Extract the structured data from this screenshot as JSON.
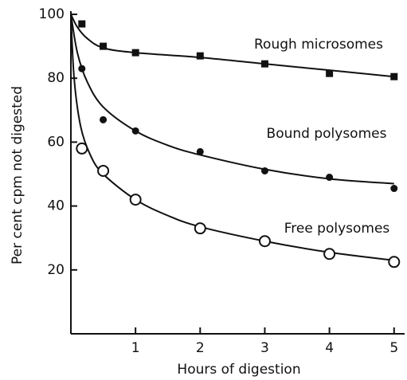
{
  "chart_data": {
    "type": "scatter",
    "x_label": "Hours of digestion",
    "y_label": "Per cent cpm not digested",
    "xlim": [
      0,
      5.2
    ],
    "ylim": [
      0,
      100
    ],
    "xticks": [
      1,
      2,
      3,
      4,
      5
    ],
    "yticks": [
      20,
      40,
      60,
      80,
      100
    ],
    "color": "#111111",
    "series": [
      {
        "name": "Rough microsomes",
        "marker": "square",
        "x": [
          0.17,
          0.5,
          1,
          2,
          3,
          4,
          5
        ],
        "values": [
          97,
          90,
          88,
          87,
          84.5,
          81.5,
          80.5
        ],
        "curve_x": [
          0,
          0.1,
          0.25,
          0.5,
          1,
          2,
          3,
          4,
          5
        ],
        "curve_values": [
          100,
          96,
          92.5,
          89.5,
          88,
          86.5,
          84.5,
          82.5,
          80.5
        ]
      },
      {
        "name": "Bound polysomes",
        "marker": "dot",
        "x": [
          0.17,
          0.5,
          1,
          2,
          3,
          4,
          5
        ],
        "values": [
          83,
          67,
          63.5,
          57,
          51,
          49,
          45.5
        ],
        "curve_x": [
          0,
          0.1,
          0.25,
          0.5,
          1,
          1.5,
          2,
          3,
          4,
          5
        ],
        "curve_values": [
          100,
          88,
          79,
          71,
          63.5,
          59,
          56,
          51.5,
          48.5,
          47
        ]
      },
      {
        "name": "Free polysomes",
        "marker": "circle",
        "x": [
          0.17,
          0.5,
          1,
          2,
          3,
          4,
          5
        ],
        "values": [
          58,
          51,
          42,
          33,
          29,
          25,
          22.5
        ],
        "curve_x": [
          0,
          0.05,
          0.15,
          0.3,
          0.5,
          1,
          1.5,
          2,
          3,
          4,
          5
        ],
        "curve_values": [
          100,
          80,
          65,
          56,
          50,
          42,
          37,
          33.5,
          29,
          25.5,
          23
        ]
      }
    ]
  }
}
